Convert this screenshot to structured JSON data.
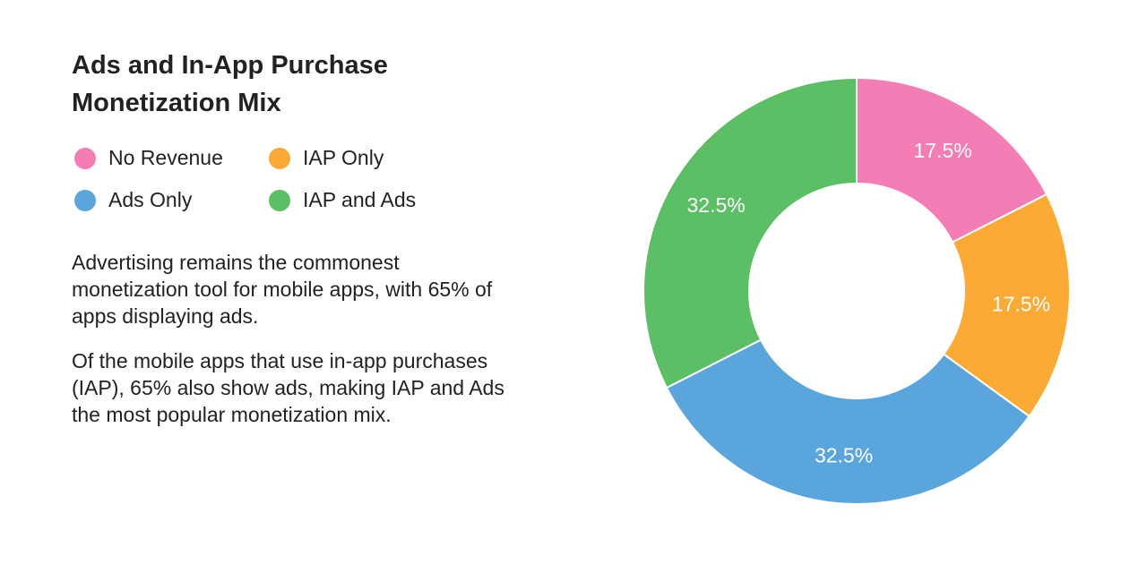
{
  "title": "Ads and In-App Purchase Monetization Mix",
  "description": [
    "Advertising remains the commonest monetization tool for mobile apps, with 65% of apps displaying ads.",
    "Of the mobile apps that use in-app purchases (IAP), 65% also show ads, making IAP and Ads the most popular monetization mix."
  ],
  "legend": [
    {
      "label": "No Revenue",
      "color": "#F37DB4"
    },
    {
      "label": "IAP Only",
      "color": "#FBAB35"
    },
    {
      "label": "Ads Only",
      "color": "#5AA5DC"
    },
    {
      "label": "IAP and Ads",
      "color": "#5CBF65"
    }
  ],
  "chart_data": {
    "type": "pie",
    "donut": true,
    "title": "Ads and In-App Purchase Monetization Mix",
    "legend_position": "top-left",
    "slices": [
      {
        "label": "No Revenue",
        "value": 17.5,
        "display": "17.5%",
        "color": "#F37DB4"
      },
      {
        "label": "IAP Only",
        "value": 17.5,
        "display": "17.5%",
        "color": "#FBAB35"
      },
      {
        "label": "Ads Only",
        "value": 32.5,
        "display": "32.5%",
        "color": "#5AA5DC"
      },
      {
        "label": "IAP and Ads",
        "value": 32.5,
        "display": "32.5%",
        "color": "#5CBF65"
      }
    ]
  }
}
